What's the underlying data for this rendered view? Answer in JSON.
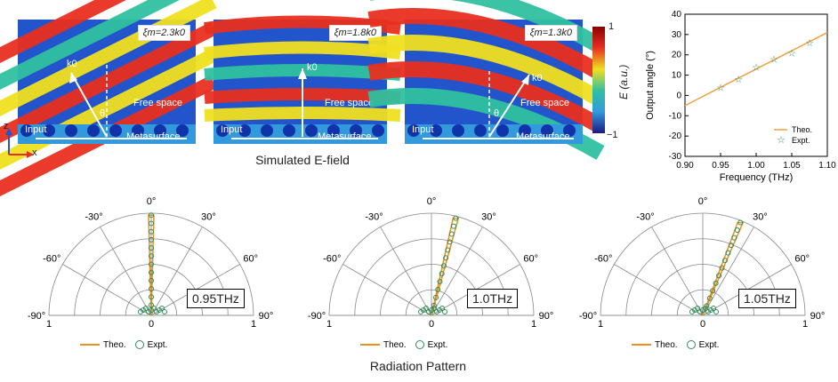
{
  "field_panels": [
    {
      "xi": "ξm=2.3k0",
      "k_label": "k0",
      "theta": "θ",
      "free_space": "Free space",
      "input": "Input",
      "metasurface": "Metasurface"
    },
    {
      "xi": "ξm=1.8k0",
      "k_label": "k0",
      "free_space": "Free space",
      "input": "Input",
      "metasurface": "Metasurface"
    },
    {
      "xi": "ξm=1.3k0",
      "k_label": "k0",
      "theta": "θ",
      "free_space": "Free space",
      "input": "Input",
      "metasurface": "Metasurface"
    }
  ],
  "axes_labels": {
    "z": "z",
    "x": "x"
  },
  "colorbar": {
    "top": "1",
    "bottom": "−1",
    "label": "E (a.u.)"
  },
  "sim_caption": "Simulated E-field",
  "radiation_caption": "Radiation Pattern",
  "polar_angles": [
    "0°",
    "-30°",
    "30°",
    "-60°",
    "60°",
    "-90°",
    "90°"
  ],
  "polar_radial": [
    "1",
    "0",
    "1"
  ],
  "polar_legend": {
    "theo": "Theo.",
    "expt": "Expt."
  },
  "polar_plots": [
    {
      "freq": "0.95THz",
      "angle_deg": 0
    },
    {
      "freq": "1.0THz",
      "angle_deg": 14
    },
    {
      "freq": "1.05THz",
      "angle_deg": 22
    }
  ],
  "chart_data": {
    "type": "scatter",
    "xlabel": "Frequency (THz)",
    "ylabel": "Output angle (°)",
    "xlim": [
      0.9,
      1.1
    ],
    "ylim": [
      -30,
      40
    ],
    "xticks": [
      "0.90",
      "0.95",
      "1.00",
      "1.05",
      "1.10"
    ],
    "yticks": [
      "40",
      "30",
      "20",
      "10",
      "0",
      "-10",
      "-20",
      "-30"
    ],
    "series": [
      {
        "name": "Theo.",
        "kind": "line",
        "color": "#f0a040",
        "x": [
          0.9,
          1.1
        ],
        "y": [
          -5,
          31
        ]
      },
      {
        "name": "Expt.",
        "kind": "marker",
        "color": "#2e8b57",
        "x": [
          0.95,
          0.975,
          1.0,
          1.025,
          1.05,
          1.075
        ],
        "y": [
          4,
          8,
          14,
          18,
          21,
          26
        ]
      }
    ]
  }
}
